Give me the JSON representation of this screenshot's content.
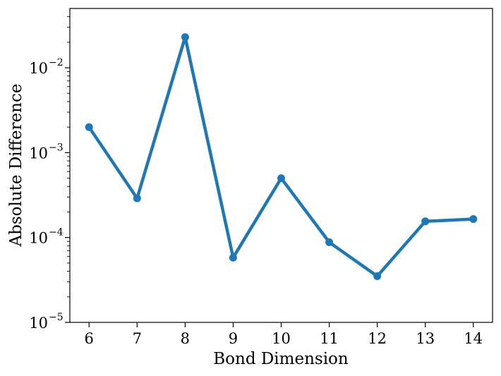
{
  "chart_data": {
    "type": "line",
    "title": "",
    "xlabel": "Bond Dimension",
    "ylabel": "Absolute Difference",
    "x": [
      6,
      7,
      8,
      9,
      10,
      11,
      12,
      13,
      14
    ],
    "series": [
      {
        "values": [
          0.002,
          0.00029,
          0.023,
          5.8e-05,
          0.0005,
          8.8e-05,
          3.5e-05,
          0.000155,
          0.000165
        ]
      }
    ],
    "xlim": [
      5.6,
      14.4
    ],
    "ylim": [
      1e-05,
      0.05
    ],
    "yscale": "log",
    "xticks": [
      "6",
      "7",
      "8",
      "9",
      "10",
      "11",
      "12",
      "13",
      "14"
    ],
    "yticks": [
      {
        "base": "10",
        "exp": "−5",
        "value": 1e-05
      },
      {
        "base": "10",
        "exp": "−4",
        "value": 0.0001
      },
      {
        "base": "10",
        "exp": "−3",
        "value": 0.001
      },
      {
        "base": "10",
        "exp": "−2",
        "value": 0.01
      }
    ],
    "grid": false,
    "legend": "none",
    "line_color": "#1f77b4",
    "marker": "circle"
  }
}
